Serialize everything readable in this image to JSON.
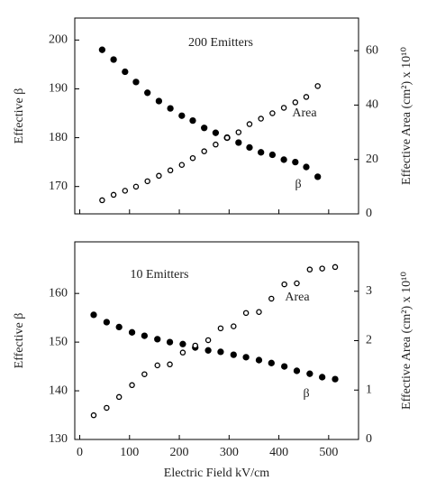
{
  "chart_data": [
    {
      "type": "scatter",
      "annotation": "200 Emitters",
      "ylabel": "Effective β",
      "y2label": "Effective Area (cm²) x 10¹⁰",
      "xlim": [
        -10,
        560
      ],
      "xticks": [
        0,
        100,
        200,
        300,
        400,
        500
      ],
      "show_xtick_labels": false,
      "ylim": [
        164.4,
        204.5
      ],
      "yticks": [
        170,
        180,
        190,
        200
      ],
      "y2lim": [
        0,
        72
      ],
      "y2ticks": [
        0,
        20,
        40,
        60
      ],
      "x": [
        45,
        68,
        91,
        113,
        136,
        159,
        182,
        205,
        227,
        250,
        273,
        296,
        319,
        341,
        364,
        387,
        410,
        433,
        455,
        478
      ],
      "series": [
        {
          "name": "β",
          "color": "#000000",
          "marker": "filled",
          "values": [
            198,
            196,
            193.5,
            191.4,
            189.2,
            187.5,
            186,
            184.5,
            183.5,
            182,
            181,
            180,
            179,
            178,
            177,
            176.5,
            175.5,
            175,
            174,
            172
          ]
        },
        {
          "name": "Area",
          "color": "#000000",
          "marker": "open",
          "axis": "y2",
          "values": [
            5,
            7,
            8.5,
            10,
            12,
            14,
            16,
            18,
            20.5,
            23,
            25.5,
            28,
            30,
            33,
            35,
            37,
            39,
            41,
            43,
            47
          ]
        }
      ]
    },
    {
      "type": "scatter",
      "annotation": "10 Emitters",
      "ylabel": "Effective β",
      "y2label": "Effective Area (cm²) x 10¹⁰",
      "xlabel": "Electric Field kV/cm",
      "xlim": [
        -10,
        560
      ],
      "xticks": [
        0,
        100,
        200,
        300,
        400,
        500
      ],
      "show_xtick_labels": true,
      "ylim": [
        130,
        170.6
      ],
      "yticks": [
        130,
        140,
        150,
        160
      ],
      "y2lim": [
        0,
        4
      ],
      "y2ticks": [
        0,
        1,
        2,
        3
      ],
      "x": [
        28,
        54,
        79,
        105,
        130,
        156,
        181,
        207,
        232,
        258,
        283,
        309,
        334,
        360,
        385,
        411,
        436,
        462,
        487,
        513
      ],
      "series": [
        {
          "name": "β",
          "color": "#000000",
          "marker": "filled",
          "values": [
            155.6,
            154.1,
            153.1,
            152,
            151.3,
            150.6,
            150,
            149.6,
            148.9,
            148.3,
            148,
            147.4,
            146.9,
            146.3,
            145.7,
            145,
            144.1,
            143.5,
            142.8,
            142.4
          ]
        },
        {
          "name": "Area",
          "color": "#000000",
          "marker": "open",
          "axis": "y2",
          "values": [
            0.49,
            0.64,
            0.86,
            1.1,
            1.32,
            1.5,
            1.52,
            1.76,
            1.9,
            2.01,
            2.25,
            2.29,
            2.56,
            2.58,
            2.85,
            3.14,
            3.16,
            3.44,
            3.46,
            3.49
          ]
        }
      ]
    }
  ]
}
